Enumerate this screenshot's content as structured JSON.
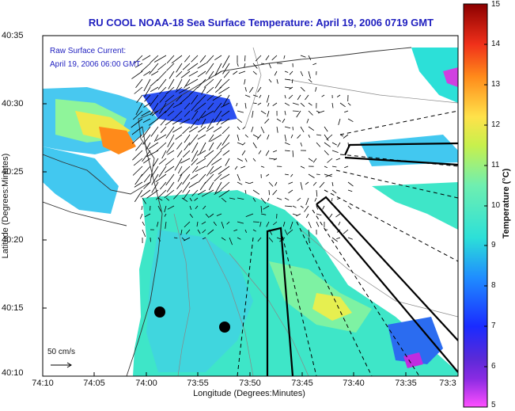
{
  "title": "RU COOL  NOAA-18  Sea Surface Temperature:  April 19, 2006 0719 GMT",
  "annotation": {
    "line1": "Raw Surface Current:",
    "line2": "April 19, 2006 06:00 GMT"
  },
  "axes": {
    "xlabel": "Longitude (Degrees:Minutes)",
    "ylabel": "Latitude (Degrees:Minutes)",
    "xticks": [
      "74:10",
      "74:05",
      "74:00",
      "73:55",
      "73:50",
      "73:45",
      "73:40",
      "73:35",
      "73:3"
    ],
    "yticks": [
      "40:35",
      "40:30",
      "40:25",
      "40:20",
      "40:15",
      "40:10"
    ]
  },
  "colorbar": {
    "title": "Temperature (°C)",
    "ticks": [
      "15",
      "14",
      "13",
      "12",
      "11",
      "10",
      "9",
      "8",
      "7",
      "6",
      "5"
    ]
  },
  "scale_arrow": {
    "label": "50 cm/s"
  },
  "colors": {
    "title": "#1f1fbf",
    "land": "#ffffff",
    "coast": "#333333"
  }
}
